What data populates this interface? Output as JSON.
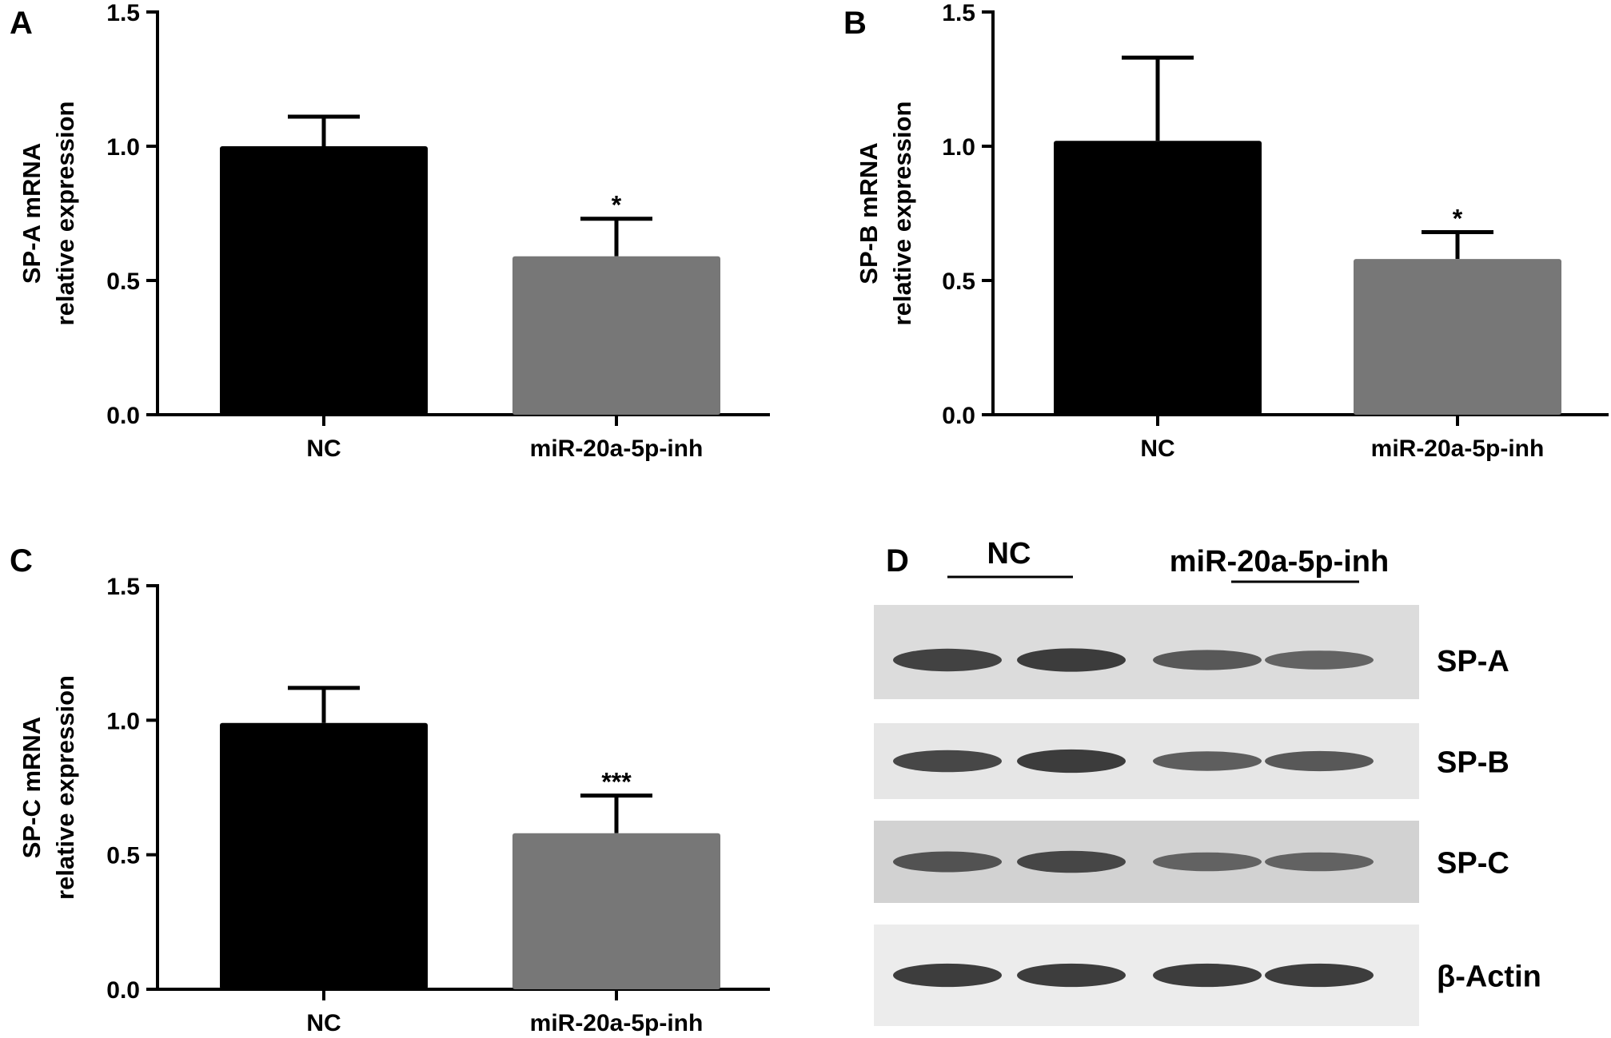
{
  "chart_data": [
    {
      "panel": "A",
      "type": "bar",
      "categories": [
        "NC",
        "miR-20a-5p-inh"
      ],
      "values": [
        1.0,
        0.59
      ],
      "errors": [
        0.11,
        0.14
      ],
      "significance": [
        "",
        "*"
      ],
      "colors": [
        "#000000",
        "#777777"
      ],
      "ylabel": [
        "SP-A mRNA",
        "relative expression"
      ],
      "ylim": [
        0,
        1.5
      ],
      "yticks": [
        "0.0",
        "0.5",
        "1.0",
        "1.5"
      ],
      "grid": false
    },
    {
      "panel": "B",
      "type": "bar",
      "categories": [
        "NC",
        "miR-20a-5p-inh"
      ],
      "values": [
        1.02,
        0.58
      ],
      "errors": [
        0.31,
        0.1
      ],
      "significance": [
        "",
        "*"
      ],
      "colors": [
        "#000000",
        "#777777"
      ],
      "ylabel": [
        "SP-B mRNA",
        "relative expression"
      ],
      "ylim": [
        0,
        1.5
      ],
      "yticks": [
        "0.0",
        "0.5",
        "1.0",
        "1.5"
      ],
      "grid": false
    },
    {
      "panel": "C",
      "type": "bar",
      "categories": [
        "NC",
        "miR-20a-5p-inh"
      ],
      "values": [
        0.99,
        0.58
      ],
      "errors": [
        0.13,
        0.14
      ],
      "significance": [
        "",
        "***"
      ],
      "colors": [
        "#000000",
        "#777777"
      ],
      "ylabel": [
        "SP-C mRNA",
        "relative expression"
      ],
      "ylim": [
        0,
        1.5
      ],
      "yticks": [
        "0.0",
        "0.5",
        "1.0",
        "1.5"
      ],
      "grid": false
    }
  ],
  "blot": {
    "panel": "D",
    "groups": [
      "NC",
      "miR-20a-5p-inh"
    ],
    "rows": [
      {
        "label": "SP-A",
        "bg": "#dcdcdc",
        "intensity": [
          0.9,
          0.95,
          0.7,
          0.6
        ]
      },
      {
        "label": "SP-B",
        "bg": "#e6e6e6",
        "intensity": [
          0.85,
          0.95,
          0.65,
          0.7
        ]
      },
      {
        "label": "SP-C",
        "bg": "#d2d2d2",
        "intensity": [
          0.75,
          0.85,
          0.6,
          0.6
        ]
      },
      {
        "label": "β-Actin",
        "bg": "#ececec",
        "intensity": [
          0.95,
          0.95,
          0.95,
          0.95
        ]
      }
    ]
  }
}
